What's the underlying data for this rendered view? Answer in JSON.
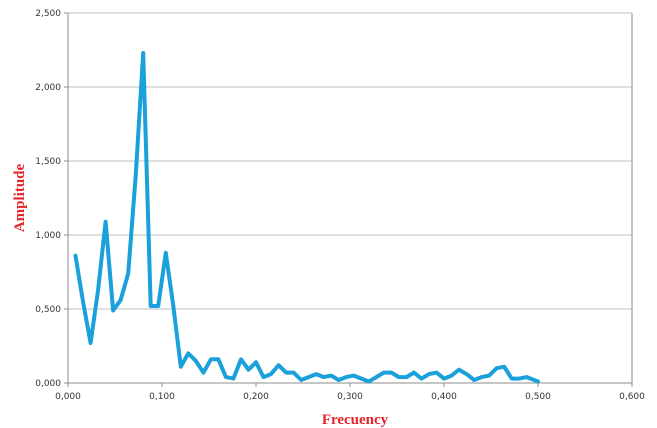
{
  "chart_data": {
    "type": "line",
    "title": "",
    "xlabel": "Frecuency",
    "ylabel": "Amplitude",
    "xlim": [
      0,
      0.6
    ],
    "ylim": [
      0,
      2.5
    ],
    "x_ticks": [
      "0,000",
      "0,100",
      "0,200",
      "0,300",
      "0,400",
      "0,500",
      "0,600"
    ],
    "y_ticks": [
      "0,000",
      "0,500",
      "1,000",
      "1,500",
      "2,000",
      "2,500"
    ],
    "grid": "horizontal",
    "legend": "none",
    "series_color": "#1aa0da",
    "series": [
      {
        "x": [
          0.008,
          0.016,
          0.024,
          0.032,
          0.04,
          0.048,
          0.056,
          0.064,
          0.072,
          0.08,
          0.088,
          0.096,
          0.104,
          0.112,
          0.12,
          0.128,
          0.136,
          0.144,
          0.152,
          0.16,
          0.168,
          0.176,
          0.184,
          0.192,
          0.2,
          0.208,
          0.216,
          0.224,
          0.232,
          0.24,
          0.248,
          0.256,
          0.264,
          0.272,
          0.28,
          0.288,
          0.296,
          0.304,
          0.312,
          0.32,
          0.328,
          0.336,
          0.344,
          0.352,
          0.36,
          0.368,
          0.376,
          0.384,
          0.392,
          0.4,
          0.408,
          0.416,
          0.424,
          0.432,
          0.44,
          0.448,
          0.456,
          0.464,
          0.472,
          0.48,
          0.488,
          0.496,
          0.5
        ],
        "y": [
          0.86,
          0.55,
          0.27,
          0.63,
          1.09,
          0.49,
          0.56,
          0.74,
          1.4,
          2.23,
          0.52,
          0.52,
          0.88,
          0.52,
          0.11,
          0.2,
          0.15,
          0.07,
          0.16,
          0.16,
          0.04,
          0.03,
          0.16,
          0.09,
          0.14,
          0.04,
          0.06,
          0.12,
          0.07,
          0.07,
          0.02,
          0.04,
          0.06,
          0.04,
          0.05,
          0.02,
          0.04,
          0.05,
          0.03,
          0.01,
          0.04,
          0.07,
          0.07,
          0.04,
          0.04,
          0.07,
          0.03,
          0.06,
          0.07,
          0.03,
          0.05,
          0.09,
          0.06,
          0.02,
          0.04,
          0.05,
          0.1,
          0.11,
          0.03,
          0.03,
          0.04,
          0.02,
          0.01
        ]
      }
    ]
  }
}
